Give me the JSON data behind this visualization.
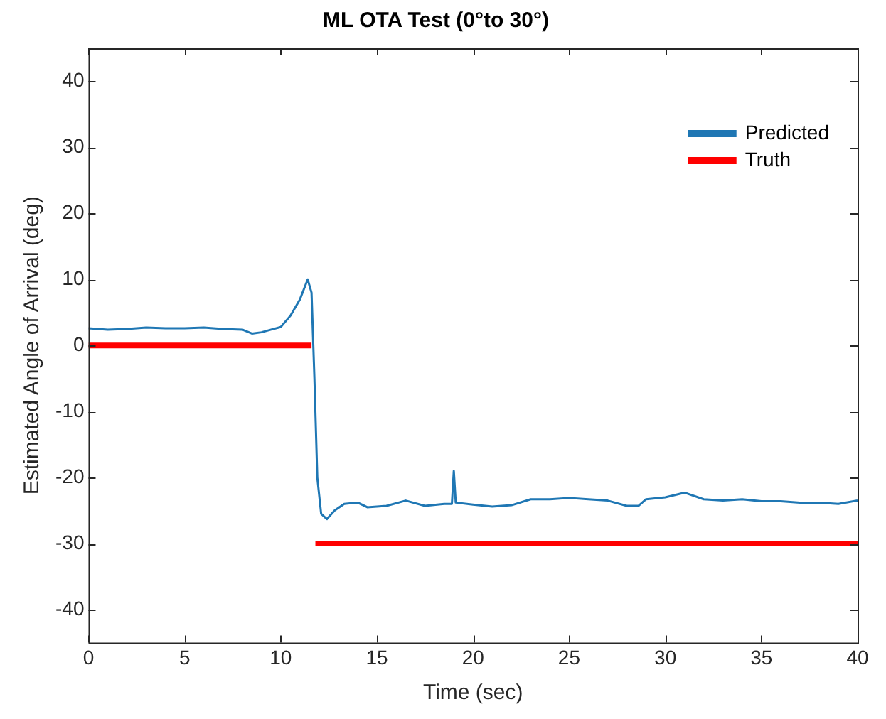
{
  "chart_data": {
    "type": "line",
    "title": "ML OTA Test (0°to 30°)",
    "xlabel": "Time (sec)",
    "ylabel": "Estimated Angle of Arrival (deg)",
    "xlim": [
      0,
      40
    ],
    "xticks": [
      0,
      5,
      10,
      15,
      20,
      25,
      30,
      35,
      40
    ],
    "ylim": [
      -45,
      45
    ],
    "yticks": [
      -40,
      -30,
      -20,
      -10,
      0,
      10,
      20,
      30,
      40
    ],
    "grid": false,
    "legend": "top right",
    "marker": "none",
    "line_style": "solid",
    "series": [
      {
        "name": "Predicted",
        "color": "#1f77b4",
        "x": [
          0,
          1,
          2,
          3,
          4,
          5,
          6,
          7,
          8,
          8.5,
          9,
          9.5,
          10,
          10.5,
          11,
          11.4,
          11.6,
          11.75,
          11.9,
          12.1,
          12.4,
          12.8,
          13.3,
          14,
          14.5,
          15.5,
          16.5,
          17.5,
          18.5,
          18.9,
          19,
          19.1,
          20,
          21,
          22,
          23,
          24,
          25,
          26,
          27,
          28,
          28.6,
          29,
          30,
          31,
          32,
          33,
          34,
          35,
          36,
          37,
          38,
          39,
          40
        ],
        "values": [
          2.6,
          2.4,
          2.5,
          2.7,
          2.6,
          2.6,
          2.7,
          2.5,
          2.4,
          1.8,
          2.0,
          2.4,
          2.8,
          4.5,
          7,
          10,
          8,
          -5,
          -20,
          -25.5,
          -26.3,
          -25,
          -24,
          -23.8,
          -24.5,
          -24.3,
          -23.5,
          -24.3,
          -24,
          -24,
          -19,
          -23.8,
          -24.1,
          -24.4,
          -24.2,
          -23.3,
          -23.3,
          -23.1,
          -23.3,
          -23.5,
          -24.3,
          -24.3,
          -23.3,
          -23,
          -22.3,
          -23.3,
          -23.5,
          -23.3,
          -23.6,
          -23.6,
          -23.8,
          -23.8,
          -24,
          -23.5
        ]
      },
      {
        "name": "Truth",
        "color": "#ff0000",
        "x": [
          0,
          11.6,
          11.7,
          11.8,
          40
        ],
        "values": [
          0,
          0,
          null,
          -30,
          -30
        ]
      }
    ]
  }
}
